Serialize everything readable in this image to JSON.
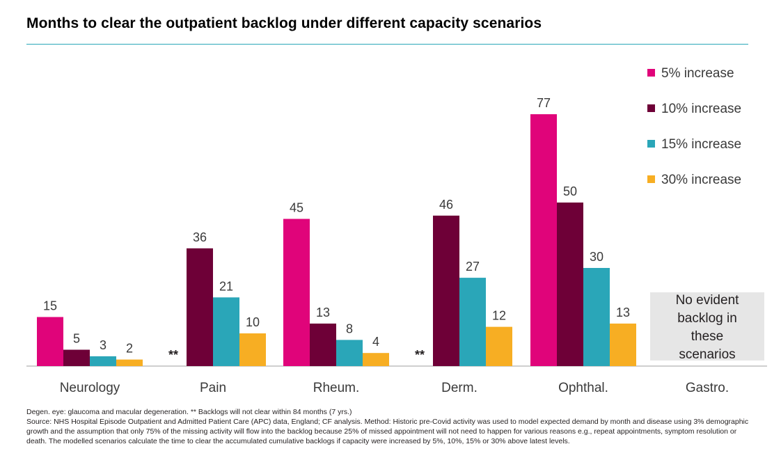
{
  "title": "Months to clear the outpatient backlog under different capacity scenarios",
  "chart_data": {
    "type": "bar",
    "title": "Months to clear the outpatient backlog under different capacity scenarios",
    "xlabel": "",
    "ylabel": "",
    "ylim": [
      0,
      84
    ],
    "grid": false,
    "legend_position": "top-right",
    "categories": [
      "Neurology",
      "Pain",
      "Rheum.",
      "Derm.",
      "Ophthal.",
      "Gastro."
    ],
    "series": [
      {
        "name": "5% increase",
        "color": "#e0047a",
        "values": [
          15,
          null,
          45,
          null,
          77,
          null
        ]
      },
      {
        "name": "10% increase",
        "color": "#6e0037",
        "values": [
          5,
          36,
          13,
          46,
          50,
          null
        ]
      },
      {
        "name": "15% increase",
        "color": "#2aa6b8",
        "values": [
          3,
          21,
          8,
          27,
          30,
          null
        ]
      },
      {
        "name": "30% increase",
        "color": "#f7ae23",
        "values": [
          2,
          10,
          4,
          12,
          13,
          null
        ]
      }
    ],
    "annotations": [
      {
        "category": "Pain",
        "text": "**"
      },
      {
        "category": "Derm.",
        "text": "**"
      },
      {
        "category": "Gastro.",
        "text": "No evident backlog in these scenarios"
      }
    ]
  },
  "colors": {
    "axis": "#bfbfbf",
    "note_box": "#e6e6e6",
    "title_rule": "#2aa6b8"
  },
  "footnotes": {
    "line1": "Degen. eye: glaucoma and macular degeneration. ** Backlogs will not clear within 84 months (7 yrs.)",
    "line2": "Source: NHS Hospital Episode Outpatient and Admitted Patient Care (APC) data, England; CF analysis. Method: Historic pre-Covid activity was used to model expected demand by month and disease using 3% demographic growth and the assumption that only 75% of the missing activity will flow into the backlog because 25% of missed appointment will not need to happen for various reasons e.g., repeat appointments, symptom resolution or death. The modelled scenarios calculate the time to clear the accumulated cumulative backlogs if capacity were increased by 5%, 10%, 15% or 30% above latest levels."
  }
}
